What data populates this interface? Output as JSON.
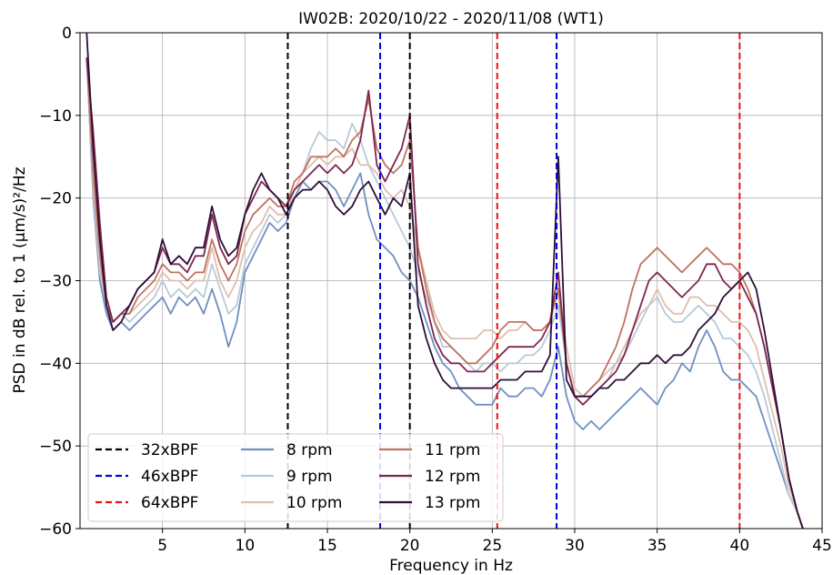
{
  "chart_data": {
    "type": "line",
    "title": "IW02B: 2020/10/22 - 2020/11/08 (WT1)",
    "xlabel": "Frequency in Hz",
    "ylabel": "PSD in dB rel. to 1 (μm/s)²/Hz",
    "xlim": [
      0,
      45
    ],
    "ylim": [
      -60,
      0
    ],
    "xticks": [
      5,
      10,
      15,
      20,
      25,
      30,
      35,
      40,
      45
    ],
    "yticks": [
      0,
      -10,
      -20,
      -30,
      -40,
      -50,
      -60
    ],
    "grid": true,
    "legend_position": "bottom-left",
    "legend_columns": 3,
    "reference_lines": [
      {
        "name": "32xBPF",
        "color": "#000000",
        "x": [
          12.6,
          20.0
        ]
      },
      {
        "name": "46xBPF",
        "color": "#0000dd",
        "x": [
          18.2,
          28.9
        ]
      },
      {
        "name": "64xBPF",
        "color": "#ee1111",
        "x": [
          25.3,
          40.0
        ]
      }
    ],
    "series": [
      {
        "name": "8 rpm",
        "color": "#6f8fc2",
        "x": [
          0.4,
          0.8,
          1.2,
          1.6,
          2,
          2.5,
          3,
          3.5,
          4,
          4.5,
          5,
          5.5,
          6,
          6.5,
          7,
          7.5,
          8,
          8.5,
          9,
          9.5,
          10,
          10.5,
          11,
          11.5,
          12,
          12.5,
          13,
          13.5,
          14,
          14.5,
          15,
          15.5,
          16,
          16.5,
          17,
          17.5,
          18,
          18.5,
          19,
          19.5,
          20,
          20.5,
          21,
          21.5,
          22,
          22.5,
          23,
          23.5,
          24,
          24.5,
          25,
          25.5,
          26,
          26.5,
          27,
          27.5,
          28,
          28.5,
          29,
          29.5,
          30,
          30.5,
          31,
          31.5,
          32,
          32.5,
          33,
          33.5,
          34,
          34.5,
          35,
          35.5,
          36,
          36.5,
          37,
          37.5,
          38,
          38.5,
          39,
          39.5,
          40,
          40.5,
          41,
          41.5,
          42,
          42.5,
          43,
          43.5,
          44
        ],
        "y": [
          -3,
          -20,
          -30,
          -34,
          -36,
          -35,
          -36,
          -35,
          -34,
          -33,
          -32,
          -34,
          -32,
          -33,
          -32,
          -34,
          -31,
          -34,
          -38,
          -35,
          -29,
          -27,
          -25,
          -23,
          -24,
          -23,
          -20,
          -18,
          -19,
          -18,
          -18,
          -19,
          -21,
          -19,
          -17,
          -22,
          -25,
          -26,
          -27,
          -29,
          -30,
          -32,
          -35,
          -38,
          -40,
          -41,
          -43,
          -44,
          -45,
          -45,
          -45,
          -43,
          -44,
          -44,
          -43,
          -43,
          -44,
          -42,
          -38,
          -44,
          -47,
          -48,
          -47,
          -48,
          -47,
          -46,
          -45,
          -44,
          -43,
          -44,
          -45,
          -43,
          -42,
          -40,
          -41,
          -38,
          -36,
          -38,
          -41,
          -42,
          -42,
          -43,
          -44,
          -47,
          -50,
          -53,
          -56,
          -58,
          -61
        ]
      },
      {
        "name": "9 rpm",
        "color": "#b9c9d8",
        "x": [
          0.4,
          0.8,
          1.2,
          1.6,
          2,
          2.5,
          3,
          3.5,
          4,
          4.5,
          5,
          5.5,
          6,
          6.5,
          7,
          7.5,
          8,
          8.5,
          9,
          9.5,
          10,
          10.5,
          11,
          11.5,
          12,
          12.5,
          13,
          13.5,
          14,
          14.5,
          15,
          15.5,
          16,
          16.5,
          17,
          17.5,
          18,
          18.5,
          19,
          19.5,
          20,
          20.5,
          21,
          21.5,
          22,
          22.5,
          23,
          23.5,
          24,
          24.5,
          25,
          25.5,
          26,
          26.5,
          27,
          27.5,
          28,
          28.5,
          29,
          29.5,
          30,
          30.5,
          31,
          31.5,
          32,
          32.5,
          33,
          33.5,
          34,
          34.5,
          35,
          35.5,
          36,
          36.5,
          37,
          37.5,
          38,
          38.5,
          39,
          39.5,
          40,
          40.5,
          41,
          41.5,
          42,
          42.5,
          43,
          43.5,
          44
        ],
        "y": [
          -3,
          -19,
          -29,
          -33,
          -35,
          -34,
          -35,
          -34,
          -33,
          -32,
          -30,
          -32,
          -31,
          -32,
          -31,
          -32,
          -28,
          -31,
          -34,
          -33,
          -28,
          -26,
          -24,
          -22,
          -23,
          -22,
          -19,
          -17,
          -14,
          -12,
          -13,
          -13,
          -14,
          -11,
          -13,
          -16,
          -18,
          -20,
          -22,
          -24,
          -26,
          -29,
          -32,
          -35,
          -38,
          -38,
          -39,
          -40,
          -41,
          -40,
          -40,
          -41,
          -40,
          -40,
          -39,
          -39,
          -38,
          -36,
          -33,
          -40,
          -44,
          -45,
          -44,
          -43,
          -42,
          -40,
          -39,
          -37,
          -35,
          -33,
          -32,
          -34,
          -35,
          -35,
          -34,
          -33,
          -34,
          -35,
          -37,
          -37,
          -38,
          -39,
          -41,
          -44,
          -48,
          -52,
          -56,
          -58,
          -61
        ]
      },
      {
        "name": "10 rpm",
        "color": "#dfbfae",
        "x": [
          0.4,
          0.8,
          1.2,
          1.6,
          2,
          2.5,
          3,
          3.5,
          4,
          4.5,
          5,
          5.5,
          6,
          6.5,
          7,
          7.5,
          8,
          8.5,
          9,
          9.5,
          10,
          10.5,
          11,
          11.5,
          12,
          12.5,
          13,
          13.5,
          14,
          14.5,
          15,
          15.5,
          16,
          16.5,
          17,
          17.5,
          18,
          18.5,
          19,
          19.5,
          20,
          20.5,
          21,
          21.5,
          22,
          22.5,
          23,
          23.5,
          24,
          24.5,
          25,
          25.5,
          26,
          26.5,
          27,
          27.5,
          28,
          28.5,
          29,
          29.5,
          30,
          30.5,
          31,
          31.5,
          32,
          32.5,
          33,
          33.5,
          34,
          34.5,
          35,
          35.5,
          36,
          36.5,
          37,
          37.5,
          38,
          38.5,
          39,
          39.5,
          40,
          40.5,
          41,
          41.5,
          42,
          42.5,
          43,
          43.5,
          44
        ],
        "y": [
          -3,
          -18,
          -28,
          -33,
          -35,
          -34,
          -34,
          -33,
          -32,
          -31,
          -29,
          -30,
          -30,
          -31,
          -30,
          -30,
          -26,
          -30,
          -32,
          -30,
          -26,
          -24,
          -23,
          -21,
          -22,
          -22,
          -19,
          -17,
          -16,
          -15,
          -16,
          -15,
          -15,
          -14,
          -16,
          -16,
          -17,
          -19,
          -20,
          -19,
          -21,
          -26,
          -30,
          -34,
          -36,
          -37,
          -37,
          -37,
          -37,
          -36,
          -36,
          -37,
          -36,
          -36,
          -35,
          -36,
          -36,
          -35,
          -31,
          -38,
          -43,
          -44,
          -43,
          -42,
          -41,
          -40,
          -38,
          -36,
          -34,
          -33,
          -31,
          -33,
          -34,
          -34,
          -32,
          -32,
          -33,
          -33,
          -34,
          -35,
          -35,
          -36,
          -38,
          -42,
          -46,
          -50,
          -55,
          -58,
          -61
        ]
      },
      {
        "name": "11 rpm",
        "color": "#c07260",
        "x": [
          0.4,
          0.8,
          1.2,
          1.6,
          2,
          2.5,
          3,
          3.5,
          4,
          4.5,
          5,
          5.5,
          6,
          6.5,
          7,
          7.5,
          8,
          8.5,
          9,
          9.5,
          10,
          10.5,
          11,
          11.5,
          12,
          12.5,
          13,
          13.5,
          14,
          14.5,
          15,
          15.5,
          16,
          16.5,
          17,
          17.5,
          18,
          18.5,
          19,
          19.5,
          20,
          20.5,
          21,
          21.5,
          22,
          22.5,
          23,
          23.5,
          24,
          24.5,
          25,
          25.5,
          26,
          26.5,
          27,
          27.5,
          28,
          28.5,
          29,
          29.5,
          30,
          30.5,
          31,
          31.5,
          32,
          32.5,
          33,
          33.5,
          34,
          34.5,
          35,
          35.5,
          36,
          36.5,
          37,
          37.5,
          38,
          38.5,
          39,
          39.5,
          40,
          40.5,
          41,
          41.5,
          42,
          42.5,
          43,
          43.5,
          44
        ],
        "y": [
          -3,
          -17,
          -27,
          -33,
          -35,
          -34,
          -34,
          -32,
          -31,
          -30,
          -28,
          -29,
          -29,
          -30,
          -29,
          -29,
          -25,
          -28,
          -30,
          -28,
          -24,
          -22,
          -21,
          -20,
          -21,
          -21,
          -18,
          -17,
          -15,
          -15,
          -15,
          -14,
          -15,
          -13,
          -12,
          -8,
          -14,
          -16,
          -17,
          -16,
          -13,
          -26,
          -31,
          -35,
          -37,
          -38,
          -39,
          -40,
          -40,
          -39,
          -38,
          -36,
          -35,
          -35,
          -35,
          -36,
          -36,
          -35,
          -31,
          -40,
          -44,
          -44,
          -43,
          -42,
          -40,
          -38,
          -35,
          -31,
          -28,
          -27,
          -26,
          -27,
          -28,
          -29,
          -28,
          -27,
          -26,
          -27,
          -28,
          -28,
          -29,
          -31,
          -34,
          -38,
          -43,
          -48,
          -54,
          -58,
          -61
        ]
      },
      {
        "name": "12 rpm",
        "color": "#7e2650",
        "x": [
          0.4,
          0.8,
          1.2,
          1.6,
          2,
          2.5,
          3,
          3.5,
          4,
          4.5,
          5,
          5.5,
          6,
          6.5,
          7,
          7.5,
          8,
          8.5,
          9,
          9.5,
          10,
          10.5,
          11,
          11.5,
          12,
          12.5,
          13,
          13.5,
          14,
          14.5,
          15,
          15.5,
          16,
          16.5,
          17,
          17.5,
          18,
          18.5,
          19,
          19.5,
          20,
          20.5,
          21,
          21.5,
          22,
          22.5,
          23,
          23.5,
          24,
          24.5,
          25,
          25.5,
          26,
          26.5,
          27,
          27.5,
          28,
          28.5,
          29,
          29.5,
          30,
          30.5,
          31,
          31.5,
          32,
          32.5,
          33,
          33.5,
          34,
          34.5,
          35,
          35.5,
          36,
          36.5,
          37,
          37.5,
          38,
          38.5,
          39,
          39.5,
          40,
          40.5,
          41,
          41.5,
          42,
          42.5,
          43,
          43.5,
          44
        ],
        "y": [
          -3,
          -12,
          -23,
          -32,
          -35,
          -34,
          -33,
          -31,
          -30,
          -29,
          -26,
          -28,
          -28,
          -29,
          -27,
          -27,
          -22,
          -26,
          -28,
          -27,
          -22,
          -20,
          -18,
          -19,
          -20,
          -21,
          -19,
          -18,
          -17,
          -16,
          -17,
          -16,
          -17,
          -16,
          -13,
          -7,
          -16,
          -18,
          -16,
          -14,
          -10,
          -28,
          -33,
          -37,
          -39,
          -40,
          -40,
          -41,
          -41,
          -41,
          -40,
          -39,
          -38,
          -38,
          -38,
          -38,
          -37,
          -35,
          -29,
          -40,
          -44,
          -45,
          -44,
          -43,
          -42,
          -41,
          -39,
          -36,
          -33,
          -30,
          -29,
          -30,
          -31,
          -32,
          -31,
          -30,
          -28,
          -28,
          -30,
          -31,
          -30,
          -32,
          -34,
          -38,
          -43,
          -48,
          -54,
          -58,
          -61
        ]
      },
      {
        "name": "13 rpm",
        "color": "#2c0f36",
        "x": [
          0.4,
          0.8,
          1.2,
          1.6,
          2,
          2.5,
          3,
          3.5,
          4,
          4.5,
          5,
          5.5,
          6,
          6.5,
          7,
          7.5,
          8,
          8.5,
          9,
          9.5,
          10,
          10.5,
          11,
          11.5,
          12,
          12.5,
          13,
          13.5,
          14,
          14.5,
          15,
          15.5,
          16,
          16.5,
          17,
          17.5,
          18,
          18.5,
          19,
          19.5,
          20,
          20.5,
          21,
          21.5,
          22,
          22.5,
          23,
          23.5,
          24,
          24.5,
          25,
          25.5,
          26,
          26.5,
          27,
          27.5,
          28,
          28.5,
          29,
          29.5,
          30,
          30.5,
          31,
          31.5,
          32,
          32.5,
          33,
          33.5,
          34,
          34.5,
          35,
          35.5,
          36,
          36.5,
          37,
          37.5,
          38,
          38.5,
          39,
          39.5,
          40,
          40.5,
          41,
          41.5,
          42,
          42.5,
          43,
          43.5,
          44
        ],
        "y": [
          0,
          -14,
          -25,
          -33,
          -36,
          -35,
          -33,
          -31,
          -30,
          -29,
          -25,
          -28,
          -27,
          -28,
          -26,
          -26,
          -21,
          -25,
          -27,
          -26,
          -22,
          -19,
          -17,
          -19,
          -20,
          -22,
          -20,
          -19,
          -19,
          -18,
          -19,
          -21,
          -22,
          -21,
          -19,
          -18,
          -20,
          -22,
          -20,
          -21,
          -17,
          -33,
          -37,
          -40,
          -42,
          -43,
          -43,
          -43,
          -43,
          -43,
          -43,
          -42,
          -42,
          -42,
          -41,
          -41,
          -41,
          -39,
          -15,
          -42,
          -44,
          -44,
          -44,
          -43,
          -43,
          -42,
          -42,
          -41,
          -40,
          -40,
          -39,
          -40,
          -39,
          -39,
          -38,
          -36,
          -35,
          -34,
          -32,
          -31,
          -30,
          -29,
          -31,
          -36,
          -42,
          -48,
          -54,
          -58,
          -61
        ]
      }
    ]
  }
}
